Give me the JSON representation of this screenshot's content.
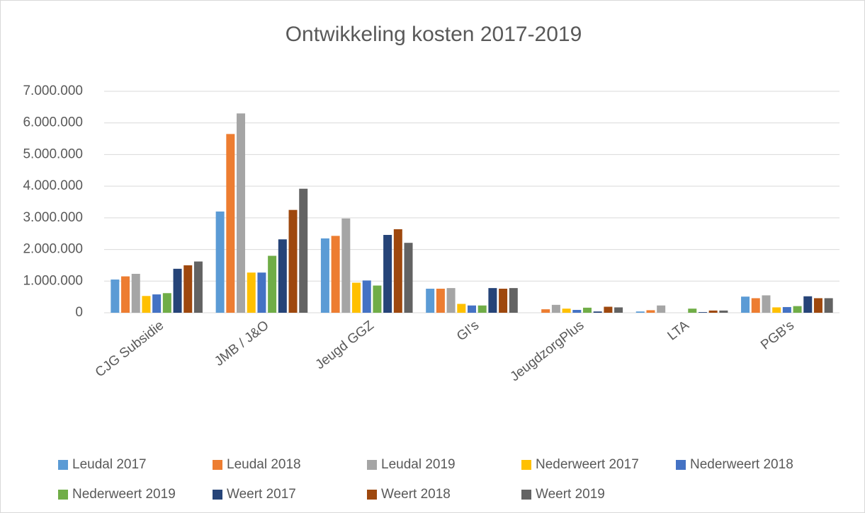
{
  "chart_data": {
    "type": "bar",
    "title": "Ontwikkeling kosten 2017-2019",
    "categories": [
      "CJG Subsidie",
      "JMB / J&O",
      "Jeugd GGZ",
      "GI's",
      "JeugdzorgPlus",
      "LTA",
      "PGB's"
    ],
    "series": [
      {
        "name": "Leudal 2017",
        "color": "#5b9bd5",
        "values": [
          1050000,
          3200000,
          2350000,
          760000,
          0,
          40000,
          510000
        ]
      },
      {
        "name": "Leudal 2018",
        "color": "#ed7d31",
        "values": [
          1150000,
          5650000,
          2430000,
          760000,
          110000,
          80000,
          460000
        ]
      },
      {
        "name": "Leudal 2019",
        "color": "#a5a5a5",
        "values": [
          1230000,
          6300000,
          2980000,
          780000,
          250000,
          230000,
          550000
        ]
      },
      {
        "name": "Nederweert 2017",
        "color": "#ffc000",
        "values": [
          530000,
          1270000,
          950000,
          280000,
          130000,
          0,
          170000
        ]
      },
      {
        "name": "Nederweert 2018",
        "color": "#4472c4",
        "values": [
          580000,
          1270000,
          1020000,
          230000,
          90000,
          0,
          180000
        ]
      },
      {
        "name": "Nederweert 2019",
        "color": "#70ad47",
        "values": [
          620000,
          1800000,
          860000,
          230000,
          160000,
          130000,
          210000
        ]
      },
      {
        "name": "Weert 2017",
        "color": "#264478",
        "values": [
          1390000,
          2320000,
          2460000,
          780000,
          40000,
          20000,
          520000
        ]
      },
      {
        "name": "Weert 2018",
        "color": "#9e480e",
        "values": [
          1500000,
          3250000,
          2640000,
          760000,
          190000,
          70000,
          460000
        ]
      },
      {
        "name": "Weert 2019",
        "color": "#636363",
        "values": [
          1620000,
          3920000,
          2210000,
          780000,
          170000,
          70000,
          460000
        ]
      }
    ],
    "ylim": [
      0,
      7000000
    ],
    "yticks": [
      0,
      {
        "value": 1000000,
        "label": "1.000.000"
      },
      {
        "value": 2000000,
        "label": "2.000.000"
      },
      {
        "value": 3000000,
        "label": "3.000.000"
      },
      {
        "value": 4000000,
        "label": "4.000.000"
      },
      {
        "value": 5000000,
        "label": "5.000.000"
      },
      {
        "value": 6000000,
        "label": "6.000.000"
      },
      {
        "value": 7000000,
        "label": "7.000.000"
      }
    ],
    "grid": true,
    "legend": "bottom"
  }
}
